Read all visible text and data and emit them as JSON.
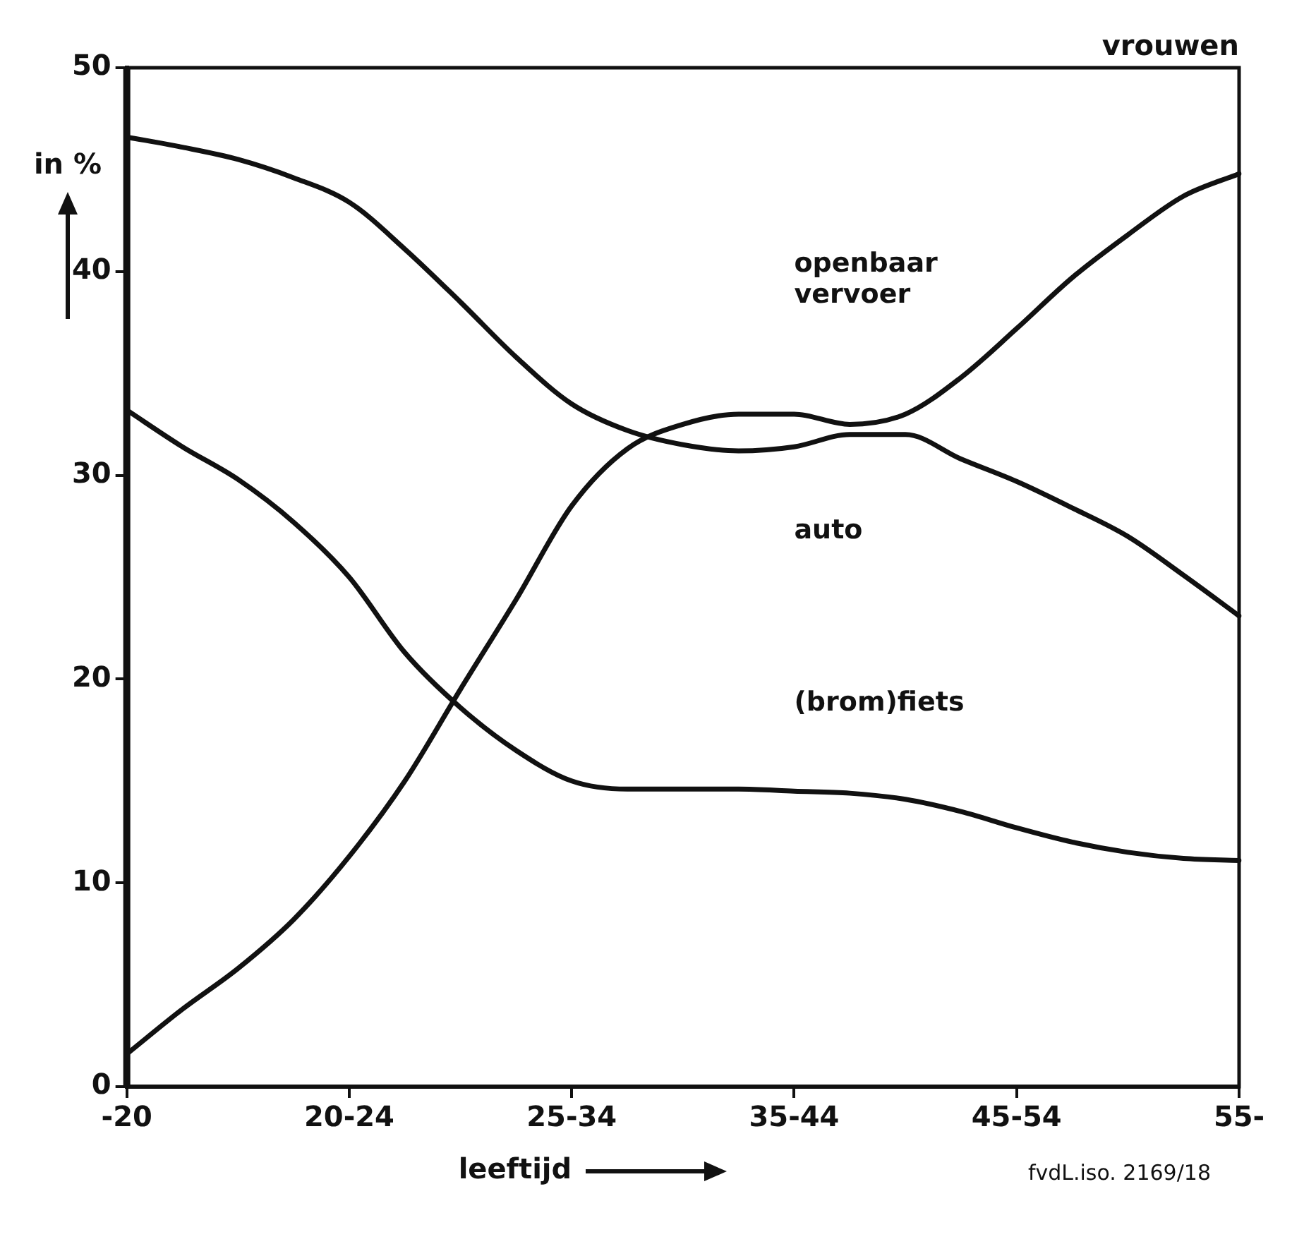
{
  "chart_data": {
    "type": "line",
    "subtitle": "vrouwen",
    "xlabel": "leeftijd",
    "ylabel": "in %",
    "annotations": [
      "fvdL.iso. 2169/18"
    ],
    "categories": [
      "-20",
      null,
      null,
      null,
      "20-24",
      null,
      null,
      null,
      "25-34",
      null,
      null,
      null,
      "35-44",
      null,
      null,
      null,
      "45-54",
      null,
      null,
      null,
      "55-"
    ],
    "ylim": [
      0,
      50
    ],
    "yticks": [
      0,
      10,
      20,
      30,
      40,
      50
    ],
    "grid": false,
    "legend": false,
    "marker": "none",
    "line_style": "solid",
    "series": [
      {
        "name": "openbaar vervoer",
        "color": "#111111",
        "values": [
          1.6,
          3.8,
          5.8,
          8.2,
          11.3,
          15.0,
          19.5,
          23.9,
          28.5,
          31.3,
          32.5,
          33.0,
          33.0,
          32.5,
          33.0,
          34.8,
          37.2,
          39.7,
          41.8,
          43.7,
          44.8
        ]
      },
      {
        "name": "auto",
        "color": "#111111",
        "values": [
          46.6,
          46.1,
          45.5,
          44.6,
          43.4,
          41.1,
          38.5,
          35.8,
          33.5,
          32.2,
          31.5,
          31.2,
          31.4,
          32.0,
          32.0,
          30.8,
          29.7,
          28.4,
          27.0,
          25.1,
          23.1
        ]
      },
      {
        "name": "(brom)fiets",
        "color": "#111111",
        "values": [
          33.2,
          31.4,
          29.8,
          27.7,
          25.0,
          21.3,
          18.6,
          16.5,
          15.0,
          14.6,
          14.6,
          14.6,
          14.5,
          14.4,
          14.1,
          13.5,
          12.7,
          12.0,
          11.5,
          11.2,
          11.1
        ]
      }
    ]
  }
}
